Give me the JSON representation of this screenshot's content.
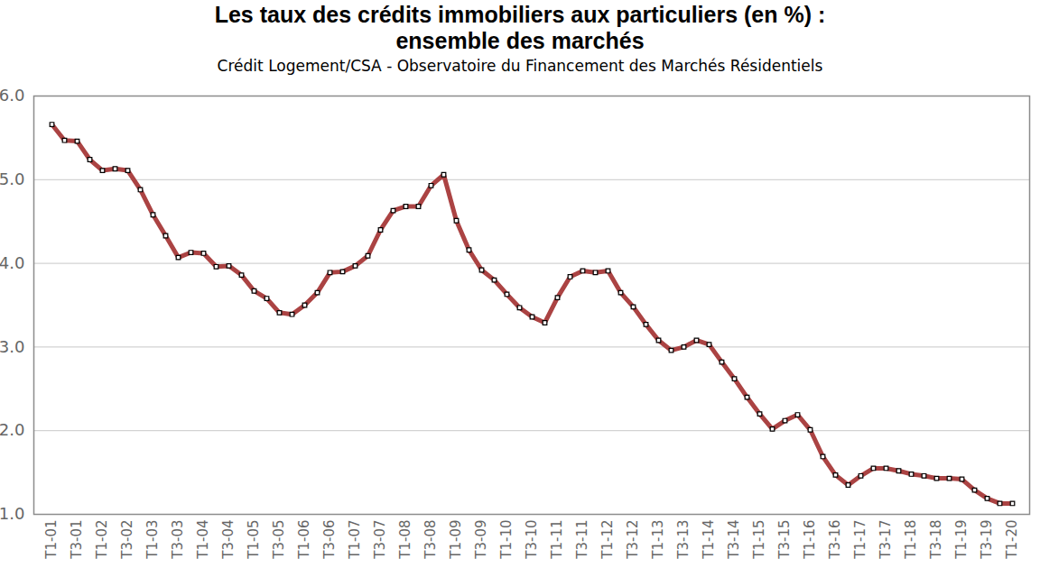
{
  "chart_data": {
    "type": "line",
    "title": "Les taux des crédits immobiliers aux particuliers (en %) : ensemble des marchés",
    "subtitle": "Crédit Logement/CSA - Observatoire du Financement des Marchés Résidentiels",
    "categories": [
      "T1-01",
      null,
      "T3-01",
      null,
      "T1-02",
      null,
      "T3-02",
      null,
      "T1-03",
      null,
      "T3-03",
      null,
      "T1-04",
      null,
      "T3-04",
      null,
      "T1-05",
      null,
      "T3-05",
      null,
      "T1-06",
      null,
      "T3-06",
      null,
      "T1-07",
      null,
      "T3-07",
      null,
      "T1-08",
      null,
      "T3-08",
      null,
      "T1-09",
      null,
      "T3-09",
      null,
      "T1-10",
      null,
      "T3-10",
      null,
      "T1-11",
      null,
      "T3-11",
      null,
      "T1-12",
      null,
      "T3-12",
      null,
      "T1-13",
      null,
      "T3-13",
      null,
      "T1-14",
      null,
      "T3-14",
      null,
      "T1-15",
      null,
      "T3-15",
      null,
      "T1-16",
      null,
      "T3-16",
      null,
      "T1-17",
      null,
      "T3-17",
      null,
      "T1-18",
      null,
      "T3-18",
      null,
      "T1-19",
      null,
      "T3-19",
      null,
      "T1-20"
    ],
    "values": [
      5.66,
      5.47,
      5.46,
      5.24,
      5.11,
      5.13,
      5.11,
      4.88,
      4.58,
      4.33,
      4.07,
      4.13,
      4.12,
      3.96,
      3.97,
      3.86,
      3.67,
      3.58,
      3.41,
      3.39,
      3.5,
      3.65,
      3.89,
      3.9,
      3.97,
      4.09,
      4.4,
      4.63,
      4.68,
      4.68,
      4.93,
      5.06,
      4.51,
      4.16,
      3.92,
      3.8,
      3.63,
      3.47,
      3.36,
      3.29,
      3.59,
      3.84,
      3.91,
      3.89,
      3.91,
      3.65,
      3.48,
      3.27,
      3.08,
      2.96,
      3.0,
      3.08,
      3.03,
      2.82,
      2.62,
      2.4,
      2.2,
      2.02,
      2.12,
      2.19,
      2.01,
      1.69,
      1.47,
      1.35,
      1.46,
      1.55,
      1.55,
      1.52,
      1.48,
      1.46,
      1.43,
      1.43,
      1.42,
      1.29,
      1.19,
      1.13,
      1.13
    ],
    "color": "#ab4343",
    "marker": "square",
    "ylim": [
      1,
      6
    ],
    "yticks": [
      1,
      2,
      3,
      4,
      5,
      6
    ],
    "grid": true
  }
}
